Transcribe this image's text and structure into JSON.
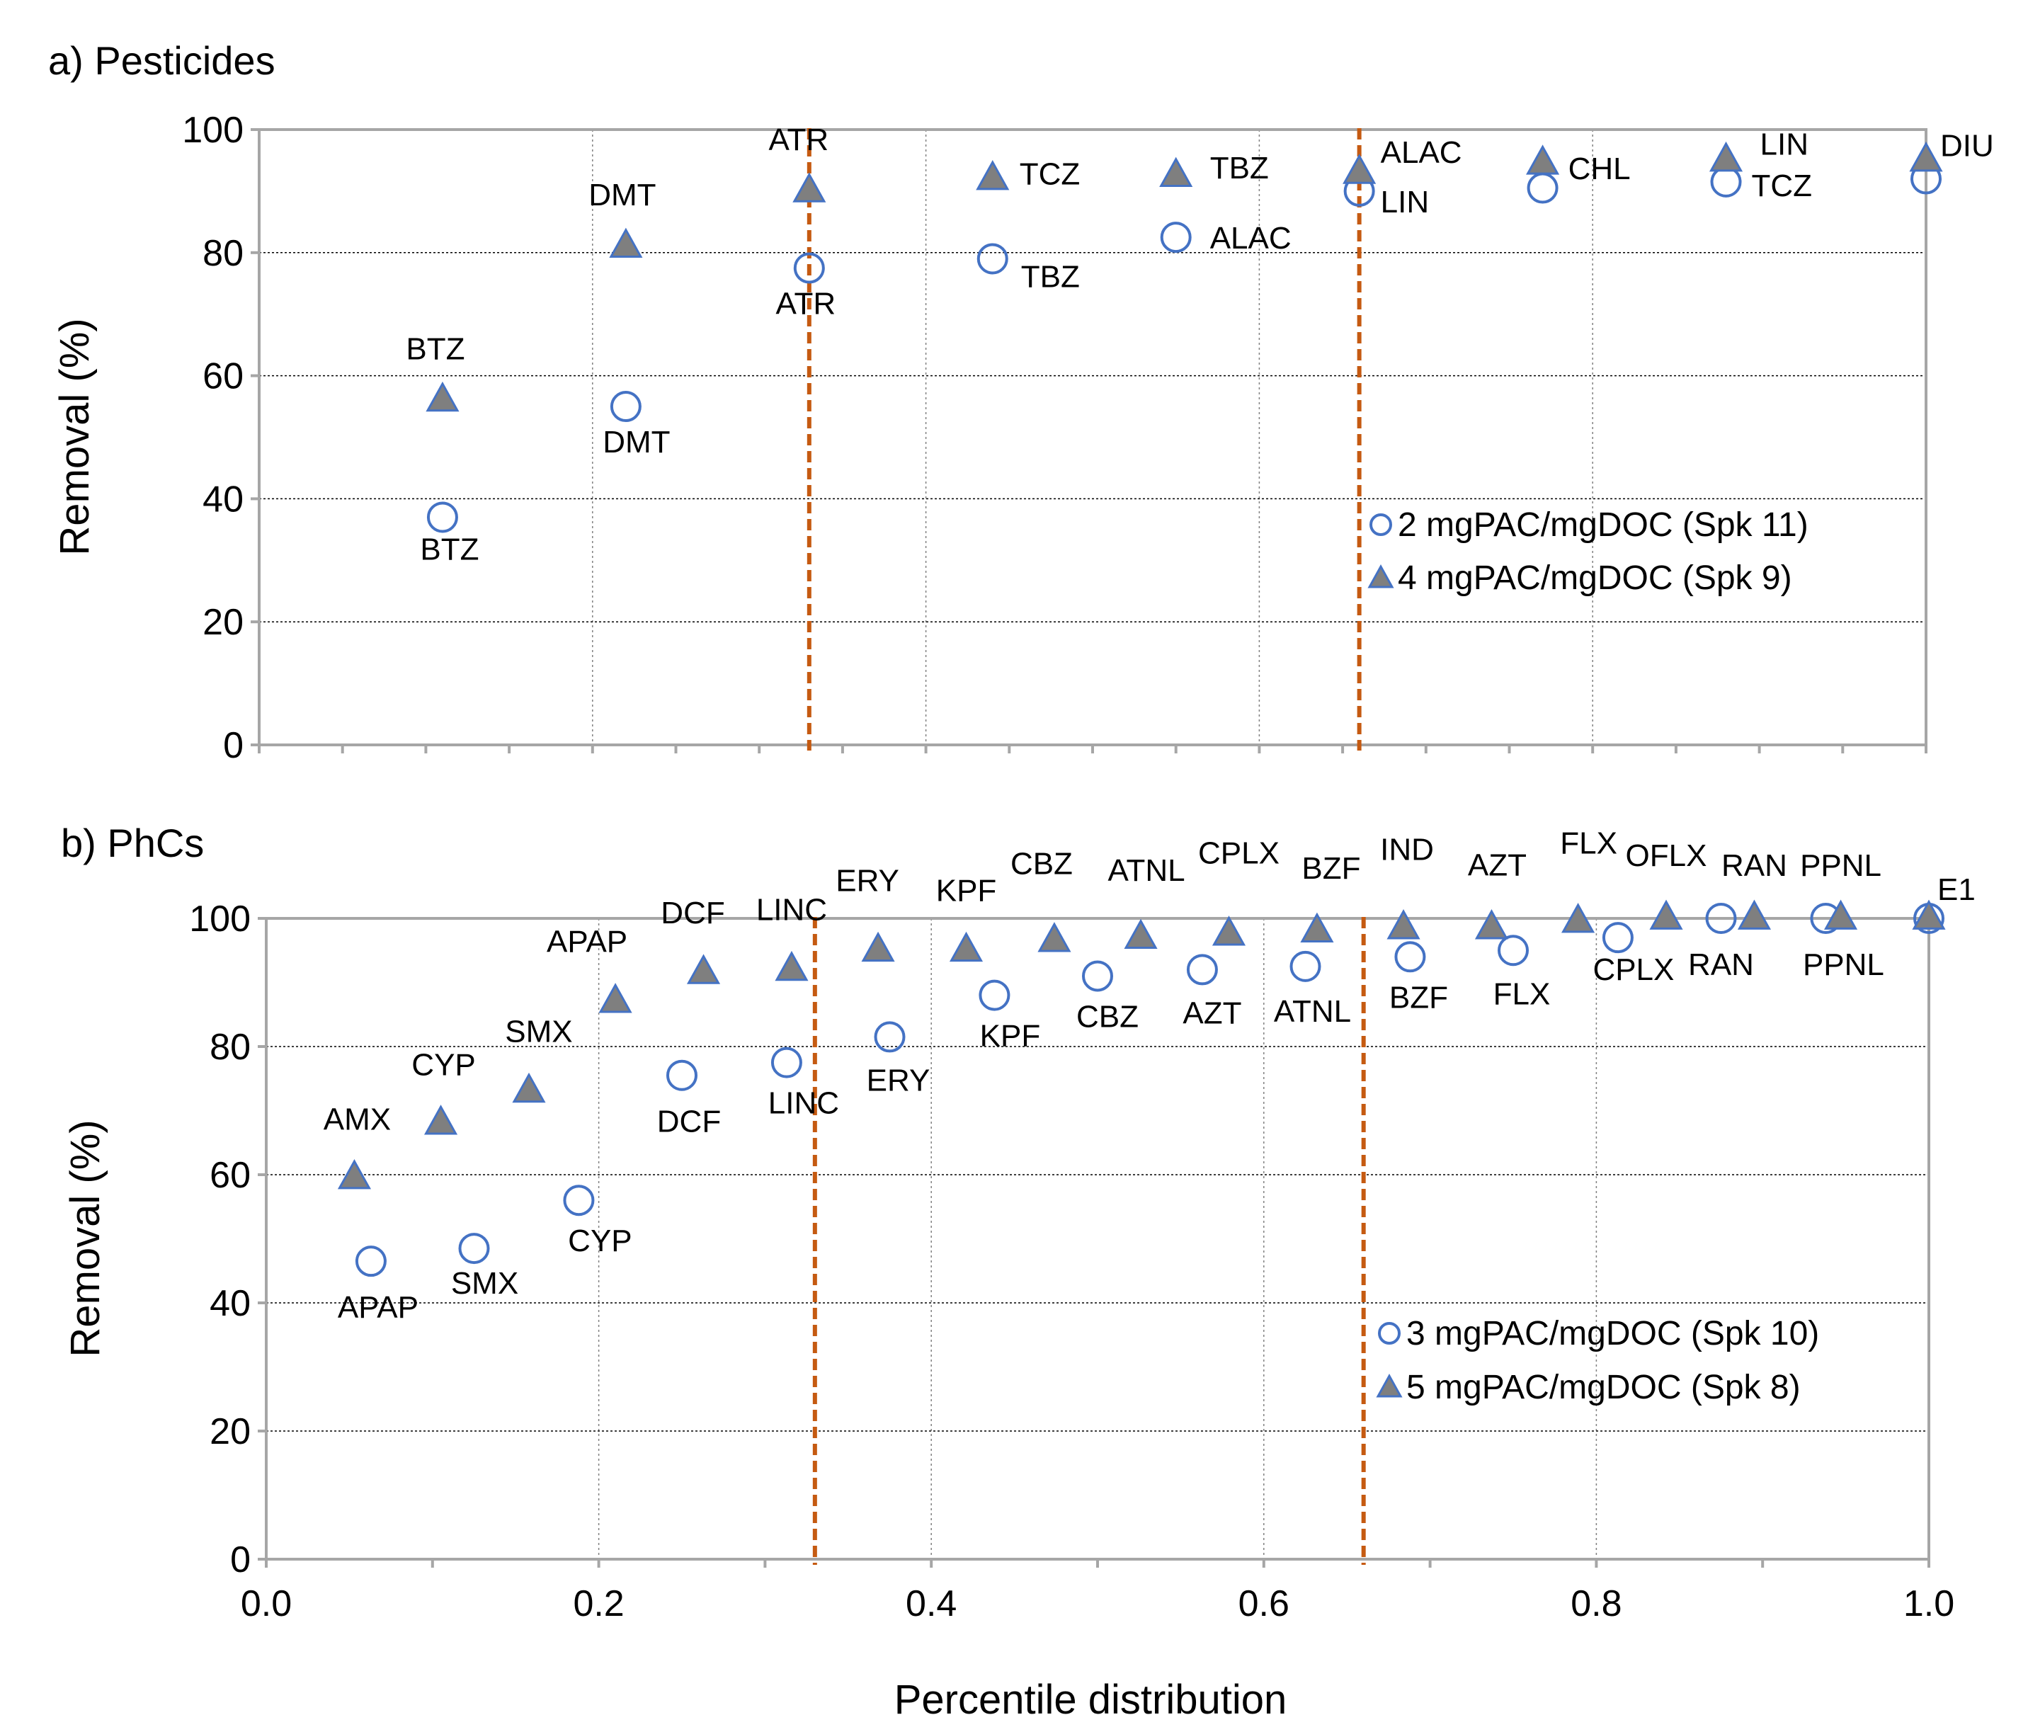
{
  "chart_data": [
    {
      "type": "scatter",
      "panel": "a) Pesticides",
      "title": "a) Pesticides",
      "xlabel": "",
      "ylabel": "Removal (%)",
      "xlim": [
        0,
        1
      ],
      "ylim": [
        0,
        100
      ],
      "yticks": [
        "0",
        "20",
        "40",
        "60",
        "80",
        "100"
      ],
      "xticks": [],
      "vertical_dashed_lines_x": [
        0.33,
        0.66
      ],
      "legend_position": "right-middle",
      "series": [
        {
          "name": "2 mgPAC/mgDOC (Spk 11)",
          "marker": "open-circle",
          "points": [
            {
              "x": 0.11,
              "y": 37,
              "label": "BTZ"
            },
            {
              "x": 0.22,
              "y": 55,
              "label": "DMT"
            },
            {
              "x": 0.33,
              "y": 77.5,
              "label": "ATR"
            },
            {
              "x": 0.44,
              "y": 79,
              "label": "TBZ"
            },
            {
              "x": 0.55,
              "y": 82.5,
              "label": "ALAC"
            },
            {
              "x": 0.66,
              "y": 90,
              "label": "LIN"
            },
            {
              "x": 0.77,
              "y": 90.5,
              "label": ""
            },
            {
              "x": 0.88,
              "y": 91.5,
              "label": "TCZ"
            },
            {
              "x": 1.0,
              "y": 92,
              "label": ""
            }
          ]
        },
        {
          "name": "4 mgPAC/mgDOC (Spk 9)",
          "marker": "filled-triangle",
          "points": [
            {
              "x": 0.11,
              "y": 56,
              "label": "BTZ"
            },
            {
              "x": 0.22,
              "y": 81,
              "label": "DMT"
            },
            {
              "x": 0.33,
              "y": 90,
              "label": "ATR"
            },
            {
              "x": 0.44,
              "y": 92,
              "label": "TCZ"
            },
            {
              "x": 0.55,
              "y": 92.5,
              "label": "TBZ"
            },
            {
              "x": 0.66,
              "y": 93,
              "label": "ALAC"
            },
            {
              "x": 0.77,
              "y": 94.5,
              "label": "CHL"
            },
            {
              "x": 0.88,
              "y": 95,
              "label": "LIN"
            },
            {
              "x": 1.0,
              "y": 95,
              "label": "DIU"
            }
          ]
        }
      ]
    },
    {
      "type": "scatter",
      "panel": "b) PhCs",
      "title": "b) PhCs",
      "xlabel": "Percentile distribution",
      "ylabel": "Removal (%)",
      "xlim": [
        0,
        1
      ],
      "ylim": [
        0,
        100
      ],
      "yticks": [
        "0",
        "20",
        "40",
        "60",
        "80",
        "100"
      ],
      "xticks": [
        "0.0",
        "0.2",
        "0.4",
        "0.6",
        "0.8",
        "1.0"
      ],
      "vertical_dashed_lines_x": [
        0.33,
        0.66
      ],
      "legend_position": "bottom-right",
      "series": [
        {
          "name": "3 mgPAC/mgDOC (Spk 10)",
          "marker": "open-circle",
          "points": [
            {
              "x": 0.063,
              "y": 46.5,
              "label": "APAP"
            },
            {
              "x": 0.125,
              "y": 48.5,
              "label": "SMX"
            },
            {
              "x": 0.188,
              "y": 56,
              "label": "CYP"
            },
            {
              "x": 0.25,
              "y": 75.5,
              "label": "DCF"
            },
            {
              "x": 0.313,
              "y": 77.5,
              "label": "LINC"
            },
            {
              "x": 0.375,
              "y": 81.5,
              "label": "ERY"
            },
            {
              "x": 0.438,
              "y": 88,
              "label": "KPF"
            },
            {
              "x": 0.5,
              "y": 91,
              "label": "CBZ"
            },
            {
              "x": 0.563,
              "y": 92,
              "label": "AZT"
            },
            {
              "x": 0.625,
              "y": 92.5,
              "label": "ATNL"
            },
            {
              "x": 0.688,
              "y": 94,
              "label": "BZF"
            },
            {
              "x": 0.75,
              "y": 95,
              "label": "FLX"
            },
            {
              "x": 0.813,
              "y": 97,
              "label": "CPLX"
            },
            {
              "x": 0.875,
              "y": 100,
              "label": "RAN"
            },
            {
              "x": 0.938,
              "y": 100,
              "label": "PPNL"
            },
            {
              "x": 1.0,
              "y": 100,
              "label": ""
            }
          ]
        },
        {
          "name": "5 mgPAC/mgDOC (Spk 8)",
          "marker": "filled-triangle",
          "points": [
            {
              "x": 0.053,
              "y": 59.5,
              "label": "AMX"
            },
            {
              "x": 0.105,
              "y": 68,
              "label": "CYP"
            },
            {
              "x": 0.158,
              "y": 73,
              "label": "SMX"
            },
            {
              "x": 0.21,
              "y": 87,
              "label": "APAP"
            },
            {
              "x": 0.263,
              "y": 91.5,
              "label": "DCF"
            },
            {
              "x": 0.316,
              "y": 92,
              "label": "LINC"
            },
            {
              "x": 0.368,
              "y": 95,
              "label": "ERY"
            },
            {
              "x": 0.421,
              "y": 95,
              "label": "KPF"
            },
            {
              "x": 0.474,
              "y": 96.5,
              "label": "CBZ"
            },
            {
              "x": 0.526,
              "y": 97,
              "label": "ATNL"
            },
            {
              "x": 0.579,
              "y": 97.5,
              "label": "CPLX"
            },
            {
              "x": 0.632,
              "y": 98,
              "label": "BZF"
            },
            {
              "x": 0.684,
              "y": 98.5,
              "label": "IND"
            },
            {
              "x": 0.737,
              "y": 98.5,
              "label": "AZT"
            },
            {
              "x": 0.789,
              "y": 99.5,
              "label": "FLX"
            },
            {
              "x": 0.842,
              "y": 100,
              "label": "OFLX"
            },
            {
              "x": 0.895,
              "y": 100,
              "label": "RAN"
            },
            {
              "x": 0.947,
              "y": 100,
              "label": "PPNL"
            },
            {
              "x": 1.0,
              "y": 100,
              "label": "E1"
            }
          ]
        }
      ]
    }
  ],
  "colors": {
    "circle_stroke": "#4472c4",
    "triangle_fill": "#7f7f7f",
    "triangle_stroke": "#4472c4",
    "dashed_line": "#c55a11",
    "grid": "#808080",
    "frame": "#a6a6a6",
    "text": "#000000"
  }
}
